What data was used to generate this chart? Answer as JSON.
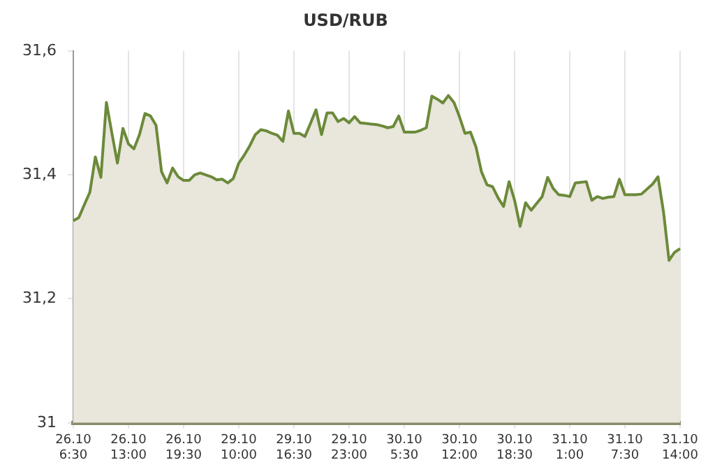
{
  "chart_data": {
    "type": "area",
    "title": "USD/RUB",
    "color": "#6b8a3a",
    "marker": "none",
    "grid": "x",
    "legend": false,
    "categories": [
      "26.10 6:30",
      null,
      null,
      null,
      null,
      null,
      null,
      null,
      null,
      null,
      "26.10 13:00",
      null,
      null,
      null,
      null,
      null,
      null,
      null,
      null,
      null,
      "26.10 19:30",
      null,
      null,
      null,
      null,
      null,
      null,
      null,
      null,
      null,
      "29.10 10:00",
      null,
      null,
      null,
      null,
      null,
      null,
      null,
      null,
      null,
      "29.10 16:30",
      null,
      null,
      null,
      null,
      null,
      null,
      null,
      null,
      null,
      "29.10 23:00",
      null,
      null,
      null,
      null,
      null,
      null,
      null,
      null,
      null,
      "30.10 5:30",
      null,
      null,
      null,
      null,
      null,
      null,
      null,
      null,
      null,
      "30.10 12:00",
      null,
      null,
      null,
      null,
      null,
      null,
      null,
      null,
      null,
      "30.10 18:30",
      null,
      null,
      null,
      null,
      null,
      null,
      null,
      null,
      null,
      "31.10 1:00",
      null,
      null,
      null,
      null,
      null,
      null,
      null,
      null,
      null,
      "31.10 7:30",
      null,
      null,
      null,
      null,
      null,
      null,
      null,
      null,
      null,
      "31.10 14:00"
    ],
    "values": [
      31.326,
      31.331,
      31.352,
      31.372,
      31.429,
      31.396,
      31.517,
      31.467,
      31.419,
      31.475,
      31.45,
      31.442,
      31.465,
      31.499,
      31.495,
      31.48,
      31.405,
      31.387,
      31.411,
      31.397,
      31.391,
      31.391,
      31.4,
      31.403,
      31.4,
      31.397,
      31.392,
      31.393,
      31.387,
      31.394,
      31.419,
      31.432,
      31.447,
      31.465,
      31.473,
      31.471,
      31.467,
      31.464,
      31.454,
      31.503,
      31.467,
      31.467,
      31.462,
      31.483,
      31.505,
      31.465,
      31.5,
      31.5,
      31.486,
      31.491,
      31.484,
      31.494,
      31.484,
      31.483,
      31.482,
      31.481,
      31.479,
      31.476,
      31.478,
      31.495,
      31.469,
      31.469,
      31.469,
      31.472,
      31.476,
      31.527,
      31.522,
      31.516,
      31.528,
      31.517,
      31.494,
      31.467,
      31.469,
      31.445,
      31.405,
      31.384,
      31.381,
      31.363,
      31.349,
      31.389,
      31.359,
      31.317,
      31.355,
      31.343,
      31.354,
      31.365,
      31.396,
      31.378,
      31.368,
      31.367,
      31.365,
      31.387,
      31.388,
      31.389,
      31.359,
      31.365,
      31.362,
      31.364,
      31.365,
      31.393,
      31.368,
      31.368,
      31.368,
      31.369,
      31.377,
      31.385,
      31.397,
      31.34,
      31.262,
      31.275,
      31.281
    ],
    "ylim": [
      31,
      31.6
    ],
    "yticks": [
      {
        "value": 31,
        "label": "31"
      },
      {
        "value": 31.2,
        "label": "31,2"
      },
      {
        "value": 31.4,
        "label": "31,4"
      },
      {
        "value": 31.6,
        "label": "31,6"
      }
    ]
  }
}
